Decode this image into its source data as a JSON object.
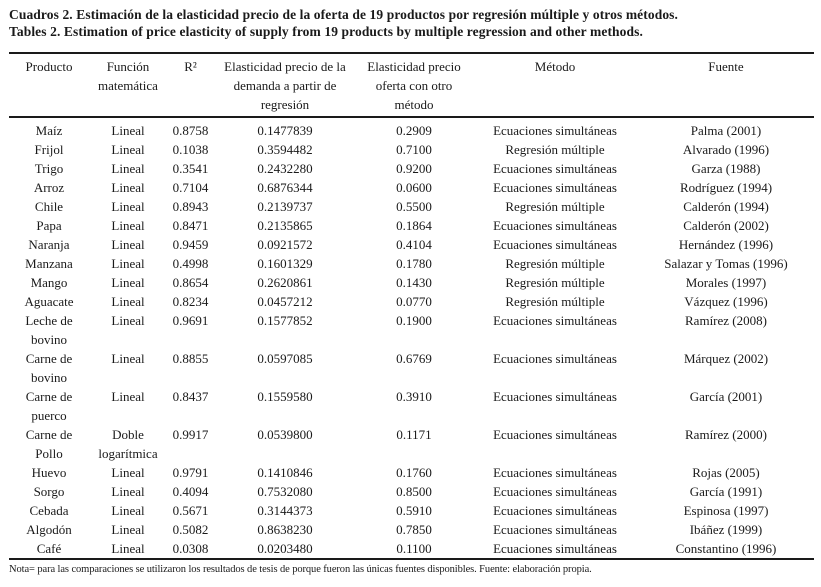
{
  "title": {
    "line1_es": "Cuadros 2. Estimación de la elasticidad precio de la oferta de 19 productos por regresión múltiple y otros métodos.",
    "line2_en": "Tables 2. Estimation of price elasticity of supply from 19 products by multiple regression and other methods."
  },
  "table": {
    "columns": [
      "Producto",
      "Función matemática",
      "R²",
      "Elasticidad precio de la demanda a partir de regresión",
      "Elasticidad precio oferta con otro método",
      "Método",
      "Fuente"
    ],
    "rows": [
      [
        "Maíz",
        "Lineal",
        "0.8758",
        "0.1477839",
        "0.2909",
        "Ecuaciones simultáneas",
        "Palma (2001)"
      ],
      [
        "Frijol",
        "Lineal",
        "0.1038",
        "0.3594482",
        "0.7100",
        "Regresión múltiple",
        "Alvarado (1996)"
      ],
      [
        "Trigo",
        "Lineal",
        "0.3541",
        "0.2432280",
        "0.9200",
        "Ecuaciones simultáneas",
        "Garza (1988)"
      ],
      [
        "Arroz",
        "Lineal",
        "0.7104",
        "0.6876344",
        "0.0600",
        "Ecuaciones simultáneas",
        "Rodríguez (1994)"
      ],
      [
        "Chile",
        "Lineal",
        "0.8943",
        "0.2139737",
        "0.5500",
        "Regresión múltiple",
        "Calderón (1994)"
      ],
      [
        "Papa",
        "Lineal",
        "0.8471",
        "0.2135865",
        "0.1864",
        "Ecuaciones simultáneas",
        "Calderón (2002)"
      ],
      [
        "Naranja",
        "Lineal",
        "0.9459",
        "0.0921572",
        "0.4104",
        "Ecuaciones simultáneas",
        "Hernández (1996)"
      ],
      [
        "Manzana",
        "Lineal",
        "0.4998",
        "0.1601329",
        "0.1780",
        "Regresión múltiple",
        "Salazar y Tomas (1996)"
      ],
      [
        "Mango",
        "Lineal",
        "0.8654",
        "0.2620861",
        "0.1430",
        "Regresión múltiple",
        "Morales (1997)"
      ],
      [
        "Aguacate",
        "Lineal",
        "0.8234",
        "0.0457212",
        "0.0770",
        "Regresión múltiple",
        "Vázquez (1996)"
      ],
      [
        "Leche de bovino",
        "Lineal",
        "0.9691",
        "0.1577852",
        "0.1900",
        "Ecuaciones simultáneas",
        "Ramírez (2008)"
      ],
      [
        "Carne de bovino",
        "Lineal",
        "0.8855",
        "0.0597085",
        "0.6769",
        "Ecuaciones simultáneas",
        "Márquez (2002)"
      ],
      [
        "Carne de puerco",
        "Lineal",
        "0.8437",
        "0.1559580",
        "0.3910",
        "Ecuaciones simultáneas",
        "García (2001)"
      ],
      [
        "Carne de Pollo",
        "Doble logarítmica",
        "0.9917",
        "0.0539800",
        "0.1171",
        "Ecuaciones simultáneas",
        "Ramírez (2000)"
      ],
      [
        "Huevo",
        "Lineal",
        "0.9791",
        "0.1410846",
        "0.1760",
        "Ecuaciones simultáneas",
        "Rojas (2005)"
      ],
      [
        "Sorgo",
        "Lineal",
        "0.4094",
        "0.7532080",
        "0.8500",
        "Ecuaciones simultáneas",
        "García (1991)"
      ],
      [
        "Cebada",
        "Lineal",
        "0.5671",
        "0.3144373",
        "0.5910",
        "Ecuaciones simultáneas",
        "Espinosa (1997)"
      ],
      [
        "Algodón",
        "Lineal",
        "0.5082",
        "0.8638230",
        "0.7850",
        "Ecuaciones simultáneas",
        "Ibáñez (1999)"
      ],
      [
        "Café",
        "Lineal",
        "0.0308",
        "0.0203480",
        "0.1100",
        "Ecuaciones simultáneas",
        "Constantino (1996)"
      ]
    ]
  },
  "footnote": "Nota= para las comparaciones se utilizaron los resultados de tesis de porque fueron las únicas fuentes disponibles. Fuente: elaboración propia.",
  "colors": {
    "text": "#1a1a1a",
    "background": "#ffffff",
    "rule": "#1a1a1a"
  }
}
